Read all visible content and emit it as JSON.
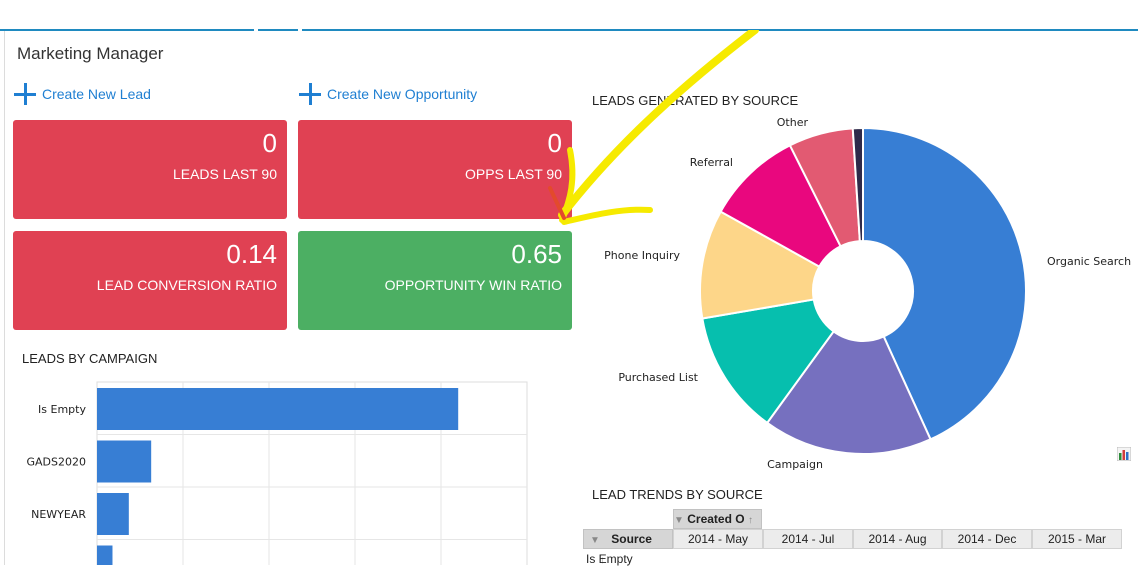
{
  "page": {
    "title": "Marketing Manager"
  },
  "actions": [
    {
      "label": "Create New Lead"
    },
    {
      "label": "Create New Opportunity"
    }
  ],
  "tiles": [
    {
      "value": "0",
      "caption": "LEADS LAST 90",
      "color": "#e04153"
    },
    {
      "value": "0",
      "caption": "OPPS LAST 90",
      "color": "#e04153"
    },
    {
      "value": "0.14",
      "caption": "LEAD CONVERSION RATIO",
      "color": "#e04153"
    },
    {
      "value": "0.65",
      "caption": "OPPORTUNITY WIN RATIO",
      "color": "#4caf63"
    }
  ],
  "sections": {
    "leads_by_campaign": "LEADS BY CAMPAIGN",
    "leads_by_source": "LEADS GENERATED BY SOURCE",
    "lead_trends": "LEAD TRENDS BY SOURCE"
  },
  "chart_data": [
    {
      "type": "bar",
      "orientation": "horizontal",
      "categories": [
        "Is Empty",
        "GADS2020",
        "NEWYEAR",
        ""
      ],
      "values": [
        42,
        6.3,
        3.7,
        1.8
      ],
      "xlim": [
        0,
        50
      ],
      "grid": true,
      "color": "#377ed4"
    },
    {
      "type": "pie",
      "donut": true,
      "labels": [
        "Organic Search",
        "Campaign",
        "Purchased List",
        "Phone Inquiry",
        "Referral",
        "Other",
        ""
      ],
      "values": [
        43.2,
        16.8,
        12.3,
        10.8,
        9.5,
        6.4,
        1.0
      ],
      "colors": [
        "#377ed4",
        "#7670bf",
        "#06bfae",
        "#fdd689",
        "#e9077e",
        "#e25a72",
        "#2e2a4a"
      ]
    }
  ],
  "table": {
    "created_header": "Created O",
    "source_header": "Source",
    "columns": [
      "2014 - May",
      "2014 - Jul",
      "2014 - Aug",
      "2014 - Dec",
      "2015 - Mar"
    ],
    "rows": [
      {
        "label": "Is Empty"
      }
    ]
  },
  "icons": {
    "add": "plus-icon",
    "chart": "chart-icon",
    "sort": "sort-icon",
    "filter": "filter-icon"
  }
}
